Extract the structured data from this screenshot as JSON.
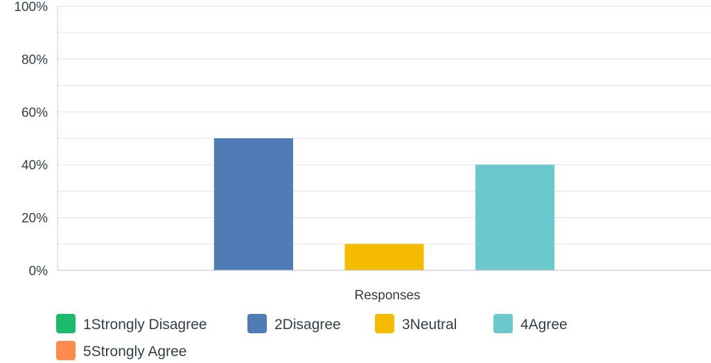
{
  "chart_data": {
    "type": "bar",
    "title": "",
    "xlabel": "Responses",
    "ylabel": "",
    "ylim": [
      0,
      100
    ],
    "y_ticks": [
      "0%",
      "20%",
      "40%",
      "60%",
      "80%",
      "100%"
    ],
    "grid": true,
    "legend_position": "bottom",
    "categories": [
      "1Strongly Disagree",
      "2Disagree",
      "3Neutral",
      "4Agree",
      "5Strongly Agree"
    ],
    "values": [
      0,
      50,
      10,
      40,
      0
    ],
    "colors": [
      "#1cbb6b",
      "#507cb6",
      "#f5bb00",
      "#6bc8cd",
      "#ff8b4f"
    ]
  }
}
